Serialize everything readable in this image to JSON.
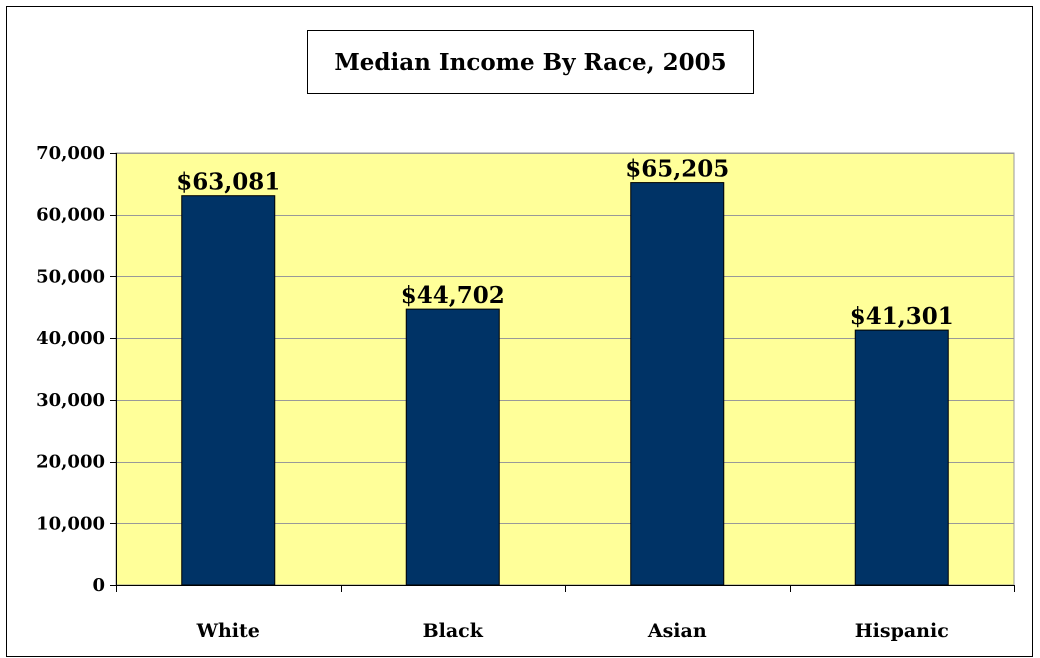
{
  "chart_data": {
    "type": "bar",
    "title": "Median Income By Race, 2005",
    "categories": [
      "White",
      "Black",
      "Asian",
      "Hispanic"
    ],
    "values": [
      63081,
      44702,
      65205,
      41301
    ],
    "data_labels": [
      "$63,081",
      "$44,702",
      "$65,205",
      "$41,301"
    ],
    "ylim": [
      0,
      70000
    ],
    "yticks": [
      0,
      10000,
      20000,
      30000,
      40000,
      50000,
      60000,
      70000
    ],
    "ytick_labels": [
      "0",
      "10,000",
      "20,000",
      "30,000",
      "40,000",
      "50,000",
      "60,000",
      "70,000"
    ],
    "xlabel": "",
    "ylabel": "",
    "grid": true,
    "legend": false,
    "colors": {
      "bar": "#003366",
      "plot_background": "#ffff99",
      "gridline": "#999999"
    }
  }
}
